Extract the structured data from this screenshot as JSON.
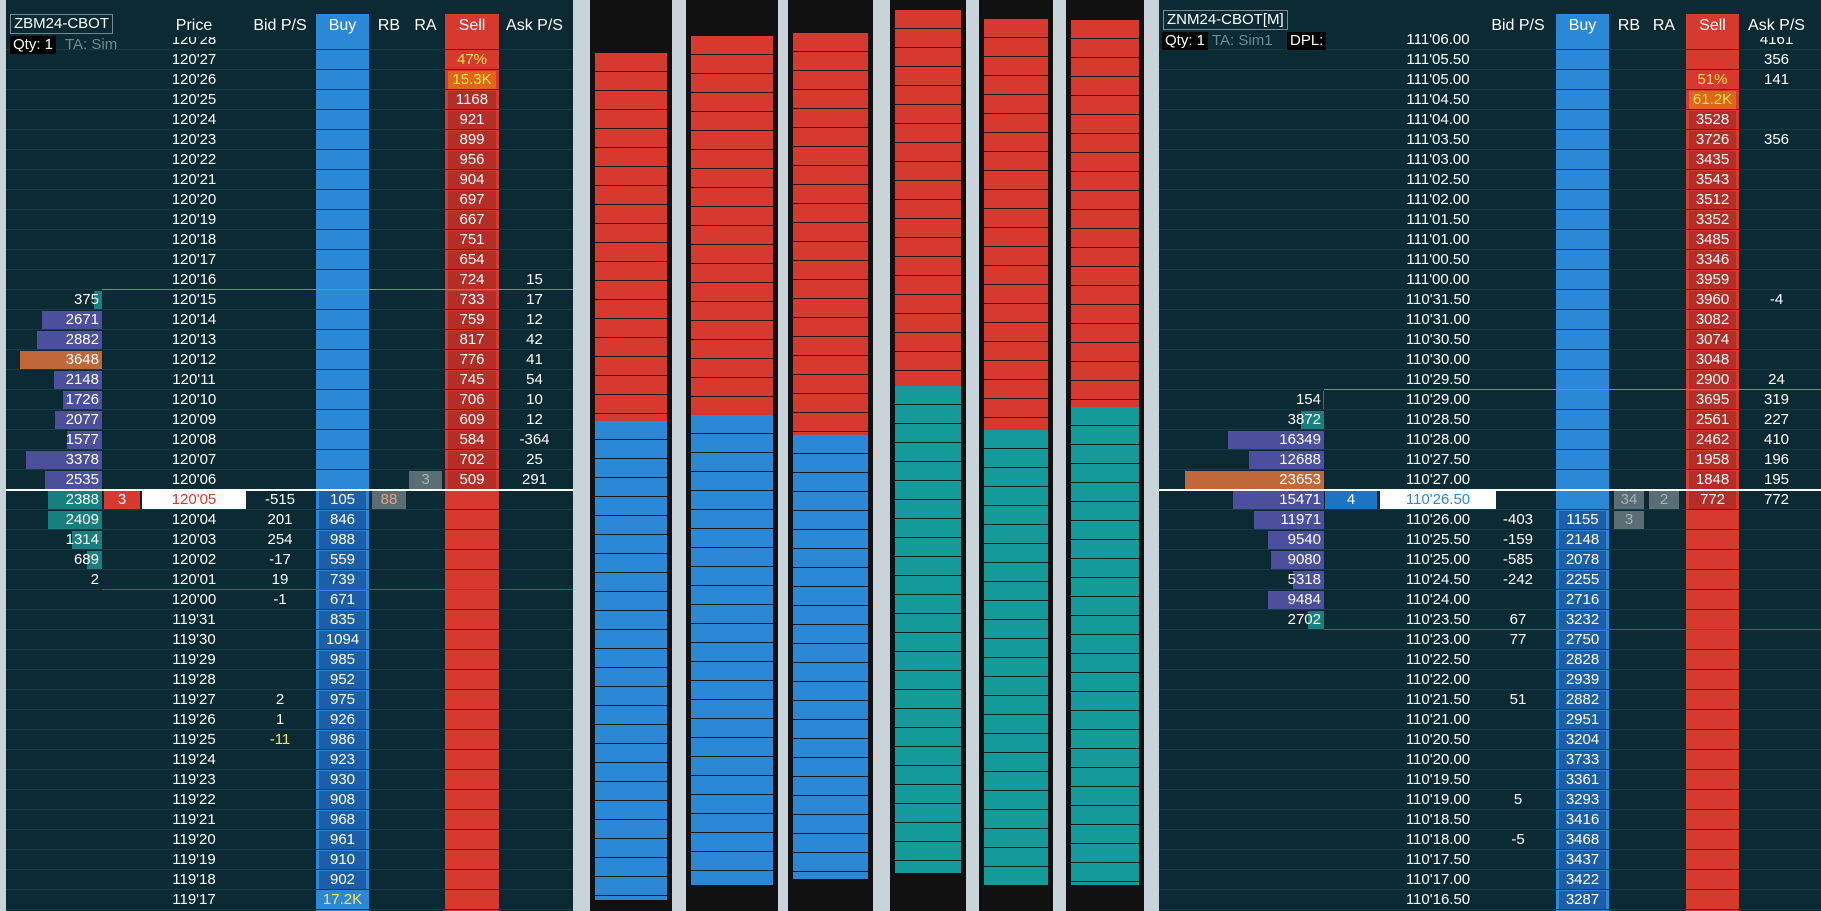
{
  "left": {
    "title": "ZBM24-CBOT",
    "qty": "Qty: 1",
    "ta": "TA: Sim",
    "headers": {
      "price": "Price",
      "bidps": "Bid P/S",
      "buy": "Buy",
      "rb": "RB",
      "ra": "RA",
      "sell": "Sell",
      "ask": "Ask P/S"
    },
    "rows": [
      {
        "price": "120'28"
      },
      {
        "price": "120'27",
        "sell": "47%"
      },
      {
        "price": "120'26",
        "sell": "15.3K"
      },
      {
        "price": "120'25",
        "sell": "1168"
      },
      {
        "price": "120'24",
        "sell": "921"
      },
      {
        "price": "120'23",
        "sell": "899"
      },
      {
        "price": "120'22",
        "sell": "956"
      },
      {
        "price": "120'21",
        "sell": "904"
      },
      {
        "price": "120'20",
        "sell": "697"
      },
      {
        "price": "120'19",
        "sell": "667"
      },
      {
        "price": "120'18",
        "sell": "751"
      },
      {
        "price": "120'17",
        "sell": "654"
      },
      {
        "price": "120'16",
        "sell": "724",
        "ask": "15"
      },
      {
        "bid": "375",
        "price": "120'15",
        "sell": "733",
        "ask": "17"
      },
      {
        "bid": "2671",
        "price": "120'14",
        "sell": "759",
        "ask": "12"
      },
      {
        "bid": "2882",
        "price": "120'13",
        "sell": "817",
        "ask": "42"
      },
      {
        "bid": "3648",
        "price": "120'12",
        "sell": "776",
        "ask": "41"
      },
      {
        "bid": "2148",
        "price": "120'11",
        "sell": "745",
        "ask": "54"
      },
      {
        "bid": "1726",
        "price": "120'10",
        "sell": "706",
        "ask": "10"
      },
      {
        "bid": "2077",
        "price": "120'09",
        "sell": "609",
        "ask": "12"
      },
      {
        "bid": "1577",
        "price": "120'08",
        "sell": "584",
        "ask": "-364"
      },
      {
        "bid": "3378",
        "price": "120'07",
        "sell": "702",
        "ask": "25"
      },
      {
        "bid": "2535",
        "price": "120'06",
        "ra": "3",
        "sell": "509",
        "ask": "291"
      },
      {
        "bid": "2388",
        "pos": "3",
        "price": "120'05",
        "bidps": "-515",
        "buy": "105",
        "rb": "88"
      },
      {
        "bid": "2409",
        "price": "120'04",
        "bidps": "201",
        "buy": "846"
      },
      {
        "bid": "1314",
        "price": "120'03",
        "bidps": "254",
        "buy": "988"
      },
      {
        "bid": "689",
        "price": "120'02",
        "bidps": "-17",
        "buy": "559"
      },
      {
        "bid": "2",
        "price": "120'01",
        "bidps": "19",
        "buy": "739"
      },
      {
        "price": "120'00",
        "bidps": "-1",
        "buy": "671"
      },
      {
        "price": "119'31",
        "buy": "835"
      },
      {
        "price": "119'30",
        "buy": "1094"
      },
      {
        "price": "119'29",
        "buy": "985"
      },
      {
        "price": "119'28",
        "buy": "952"
      },
      {
        "price": "119'27",
        "bidps": "2",
        "buy": "975"
      },
      {
        "price": "119'26",
        "bidps": "1",
        "buy": "926"
      },
      {
        "price": "119'25",
        "bidps": "-11",
        "buy": "986"
      },
      {
        "price": "119'24",
        "buy": "923"
      },
      {
        "price": "119'23",
        "buy": "930"
      },
      {
        "price": "119'22",
        "buy": "908"
      },
      {
        "price": "119'21",
        "buy": "968"
      },
      {
        "price": "119'20",
        "buy": "961"
      },
      {
        "price": "119'19",
        "buy": "910"
      },
      {
        "price": "119'18",
        "buy": "902"
      },
      {
        "price": "119'17",
        "buy": "17.2K"
      }
    ]
  },
  "right": {
    "title": "ZNM24-CBOT[M]",
    "qty": "Qty: 1",
    "ta": "TA: Sim1",
    "dpl": "DPL:",
    "headers": {
      "bidps": "Bid P/S",
      "buy": "Buy",
      "rb": "RB",
      "ra": "RA",
      "sell": "Sell",
      "ask": "Ask P/S"
    },
    "rows": [
      {
        "price": "111'06.00",
        "ask": "4161"
      },
      {
        "price": "111'05.50",
        "ask": "356"
      },
      {
        "price": "111'05.00",
        "sell": "51%",
        "ask": "141"
      },
      {
        "price": "111'04.50",
        "sell": "61.2K"
      },
      {
        "price": "111'04.00",
        "sell": "3528"
      },
      {
        "price": "111'03.50",
        "sell": "3726",
        "ask": "356"
      },
      {
        "price": "111'03.00",
        "sell": "3435"
      },
      {
        "price": "111'02.50",
        "sell": "3543"
      },
      {
        "price": "111'02.00",
        "sell": "3512"
      },
      {
        "price": "111'01.50",
        "sell": "3352"
      },
      {
        "price": "111'01.00",
        "sell": "3485"
      },
      {
        "price": "111'00.50",
        "sell": "3346"
      },
      {
        "price": "111'00.00",
        "sell": "3959"
      },
      {
        "price": "110'31.50",
        "sell": "3960",
        "ask": "-4"
      },
      {
        "price": "110'31.00",
        "sell": "3082"
      },
      {
        "price": "110'30.50",
        "sell": "3074"
      },
      {
        "price": "110'30.00",
        "sell": "3048"
      },
      {
        "price": "110'29.50",
        "sell": "2900",
        "ask": "24"
      },
      {
        "bid": "154",
        "price": "110'29.00",
        "sell": "3695",
        "ask": "319"
      },
      {
        "bid": "3872",
        "price": "110'28.50",
        "sell": "2561",
        "ask": "227"
      },
      {
        "bid": "16349",
        "price": "110'28.00",
        "sell": "2462",
        "ask": "410"
      },
      {
        "bid": "12688",
        "price": "110'27.50",
        "sell": "1958",
        "ask": "196"
      },
      {
        "bid": "23653",
        "price": "110'27.00",
        "sell": "1848",
        "ask": "195"
      },
      {
        "bid": "15471",
        "pos": "4",
        "price": "110'26.50",
        "rb": "34",
        "ra": "2",
        "sell": "772",
        "ask": "772"
      },
      {
        "bid": "11971",
        "price": "110'26.00",
        "bidps": "-403",
        "buy": "1155",
        "rb": "3"
      },
      {
        "bid": "9540",
        "price": "110'25.50",
        "bidps": "-159",
        "buy": "2148"
      },
      {
        "bid": "9080",
        "price": "110'25.00",
        "bidps": "-585",
        "buy": "2078"
      },
      {
        "bid": "5318",
        "price": "110'24.50",
        "bidps": "-242",
        "buy": "2255"
      },
      {
        "bid": "9484",
        "price": "110'24.00",
        "buy": "2716"
      },
      {
        "bid": "2702",
        "price": "110'23.50",
        "bidps": "67",
        "buy": "3232"
      },
      {
        "price": "110'23.00",
        "bidps": "77",
        "buy": "2750"
      },
      {
        "price": "110'22.50",
        "buy": "2828"
      },
      {
        "price": "110'22.00",
        "buy": "2939"
      },
      {
        "price": "110'21.50",
        "bidps": "51",
        "buy": "2882"
      },
      {
        "price": "110'21.00",
        "buy": "2951"
      },
      {
        "price": "110'20.50",
        "buy": "3204"
      },
      {
        "price": "110'20.00",
        "buy": "3733"
      },
      {
        "price": "110'19.50",
        "buy": "3361"
      },
      {
        "price": "110'19.00",
        "bidps": "5",
        "buy": "3293"
      },
      {
        "price": "110'18.50",
        "buy": "3416"
      },
      {
        "price": "110'18.00",
        "bidps": "-5",
        "buy": "3468"
      },
      {
        "price": "110'17.50",
        "buy": "3437"
      },
      {
        "price": "110'17.00",
        "buy": "3422"
      },
      {
        "price": "110'16.50",
        "buy": "3287"
      }
    ]
  }
}
